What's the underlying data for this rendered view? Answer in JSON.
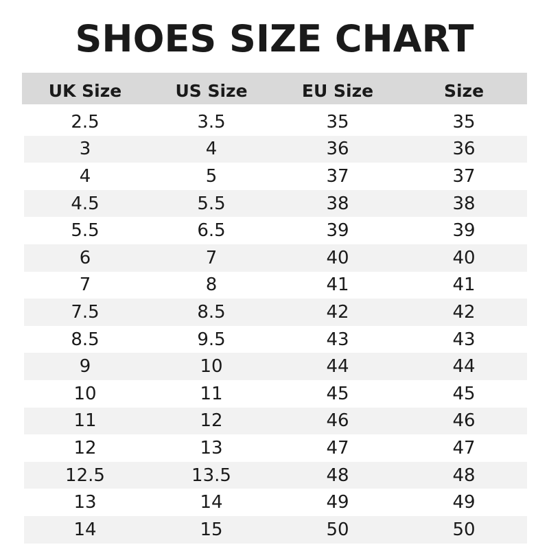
{
  "title": "SHOES SIZE CHART",
  "colors": {
    "header_bg": "#d9d9d9",
    "stripe_bg": "#f2f2f2",
    "text": "#1a1a1a"
  },
  "chart_data": {
    "type": "table",
    "title": "SHOES SIZE CHART",
    "columns": [
      "UK Size",
      "US Size",
      "EU Size",
      "Size"
    ],
    "rows": [
      [
        "2.5",
        "3.5",
        "35",
        "35"
      ],
      [
        "3",
        "4",
        "36",
        "36"
      ],
      [
        "4",
        "5",
        "37",
        "37"
      ],
      [
        "4.5",
        "5.5",
        "38",
        "38"
      ],
      [
        "5.5",
        "6.5",
        "39",
        "39"
      ],
      [
        "6",
        "7",
        "40",
        "40"
      ],
      [
        "7",
        "8",
        "41",
        "41"
      ],
      [
        "7.5",
        "8.5",
        "42",
        "42"
      ],
      [
        "8.5",
        "9.5",
        "43",
        "43"
      ],
      [
        "9",
        "10",
        "44",
        "44"
      ],
      [
        "10",
        "11",
        "45",
        "45"
      ],
      [
        "11",
        "12",
        "46",
        "46"
      ],
      [
        "12",
        "13",
        "47",
        "47"
      ],
      [
        "12.5",
        "13.5",
        "48",
        "48"
      ],
      [
        "13",
        "14",
        "49",
        "49"
      ],
      [
        "14",
        "15",
        "50",
        "50"
      ]
    ]
  }
}
